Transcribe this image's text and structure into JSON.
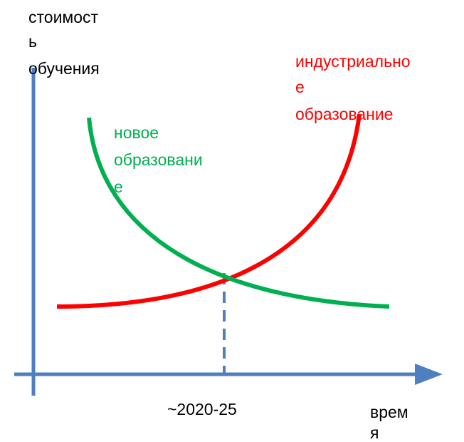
{
  "y_axis_label": [
    "стоимост",
    "ь",
    "обучения"
  ],
  "x_axis_label": [
    "врем",
    "я"
  ],
  "curves": [
    {
      "label": [
        "индустриально",
        "е",
        "образование"
      ]
    },
    {
      "label": [
        "новое",
        "образовани",
        "е"
      ]
    }
  ],
  "crossing_label": "~2020-25"
}
